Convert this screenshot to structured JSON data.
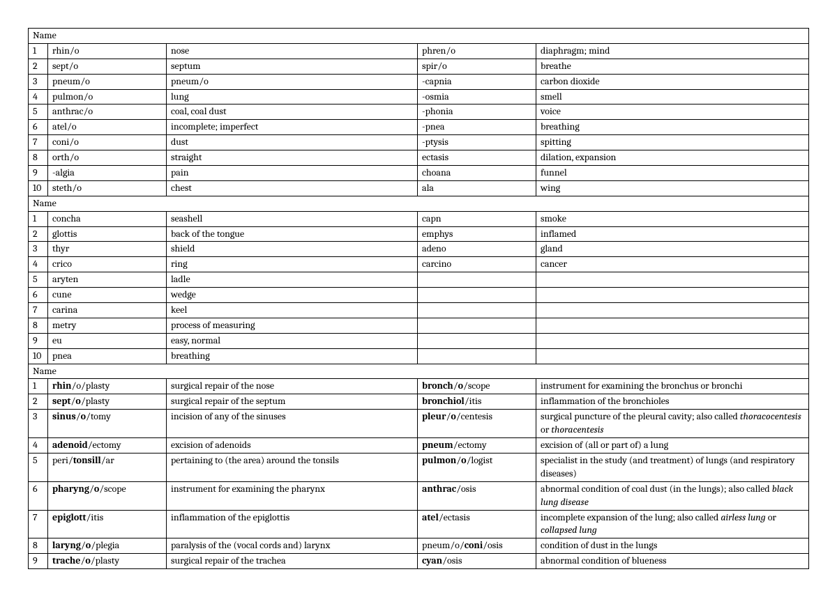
{
  "headers": {
    "name": "Name"
  },
  "section1": [
    {
      "n": "1",
      "a": "rhin/o",
      "b": "nose",
      "c": "phren/o",
      "d": "diaphragm; mind"
    },
    {
      "n": "2",
      "a": "sept/o",
      "b": "septum",
      "c": "spir/o",
      "d": "breathe"
    },
    {
      "n": "3",
      "a": "pneum/o",
      "b": "pneum/o",
      "c": "-capnia",
      "d": "carbon dioxide"
    },
    {
      "n": "4",
      "a": "pulmon/o",
      "b": "lung",
      "c": "-osmia",
      "d": "smell"
    },
    {
      "n": "5",
      "a": "anthrac/o",
      "b": "coal, coal dust",
      "c": "-phonia",
      "d": "voice"
    },
    {
      "n": "6",
      "a": "atel/o",
      "b": "incomplete; imperfect",
      "c": "-pnea",
      "d": "breathing"
    },
    {
      "n": "7",
      "a": "coni/o",
      "b": "dust",
      "c": "-ptysis",
      "d": "spitting"
    },
    {
      "n": "8",
      "a": "orth/o",
      "b": "straight",
      "c": "ectasis",
      "d": "dilation, expansion"
    },
    {
      "n": "9",
      "a": "-algia",
      "b": "pain",
      "c": "choana",
      "d": "funnel"
    },
    {
      "n": "10",
      "a": "steth/o",
      "b": "chest",
      "c": "ala",
      "d": "wing"
    }
  ],
  "section2": [
    {
      "n": "1",
      "a": "concha",
      "b": "seashell",
      "c": "capn",
      "d": "smoke"
    },
    {
      "n": "2",
      "a": "glottis",
      "b": "back of the tongue",
      "c": "emphys",
      "d": "inflamed"
    },
    {
      "n": "3",
      "a": "thyr",
      "b": "shield",
      "c": "adeno",
      "d": "gland"
    },
    {
      "n": "4",
      "a": "crico",
      "b": "ring",
      "c": "carcino",
      "d": "cancer"
    },
    {
      "n": "5",
      "a": "aryten",
      "b": "ladle",
      "c": "",
      "d": ""
    },
    {
      "n": "6",
      "a": "cune",
      "b": "wedge",
      "c": "",
      "d": ""
    },
    {
      "n": "7",
      "a": "carina",
      "b": "keel",
      "c": "",
      "d": ""
    },
    {
      "n": "8",
      "a": "metry",
      "b": "process of measuring",
      "c": "",
      "d": ""
    },
    {
      "n": "9",
      "a": "eu",
      "b": "easy, normal",
      "c": "",
      "d": ""
    },
    {
      "n": "10",
      "a": "pnea",
      "b": "breathing",
      "c": "",
      "d": ""
    }
  ],
  "section3": [
    {
      "n": "1",
      "a": "<b>rhin</b>/o/plasty",
      "b": "surgical repair of the nose",
      "c": "<b>bronch</b>/<b>o</b>/scope",
      "d": "instrument for examining the bronchus or bronchi"
    },
    {
      "n": "2",
      "a": "<b>sept</b>/<b>o</b>/plasty",
      "b": "surgical repair of the septum",
      "c": "<b>bronchiol</b>/itis",
      "d": "inflammation of the bronchioles"
    },
    {
      "n": "3",
      "a": "<b>sinus</b>/<b>o</b>/tomy",
      "b": "incision of any of the sinuses",
      "c": "<b>pleur</b>/<b>o</b>/centesis",
      "d": "surgical puncture of the pleural cavity; also called <i>thoracocentesis</i> or <i>thoracentesis</i>"
    },
    {
      "n": "4",
      "a": "<b>adenoid</b>/ectomy",
      "b": "excision of adenoids",
      "c": "<b>pneum</b>/ectomy",
      "d": "excision of (all or part of) a lung"
    },
    {
      "n": "5",
      "a": "peri/<b>tonsill</b>/ar",
      "b": "pertaining to (the area) around the tonsils",
      "c": "<b>pulmon</b>/<b>o</b>/logist",
      "d": "specialist in the study (and treatment) of lungs (and respiratory diseases)"
    },
    {
      "n": "6",
      "a": "<b>pharyng</b>/<b>o</b>/scope",
      "b": "instrument for examining the pharynx",
      "c": "<b>anthrac</b>/osis",
      "d": "abnormal condition of coal dust (in the lungs); also called <i>black lung disease</i>"
    },
    {
      "n": "7",
      "a": "<b>epiglott</b>/itis",
      "b": "inflammation of the epiglottis",
      "c": "<b>atel</b>/ectasis",
      "d": "incomplete expansion of the lung; also called <i>airless lung</i> or <i>collapsed lung</i>"
    },
    {
      "n": "8",
      "a": "<b>laryng</b>/<b>o</b>/plegia",
      "b": "paralysis of the (vocal cords and) larynx",
      "c": "pneum/o/<b>coni</b>/osis",
      "d": "condition of dust in the lungs"
    },
    {
      "n": "9",
      "a": "<b>trache</b>/<b>o</b>/plasty",
      "b": "surgical repair of the trachea",
      "c": "<b>cyan</b>/osis",
      "d": "abnormal condition of blueness"
    }
  ]
}
